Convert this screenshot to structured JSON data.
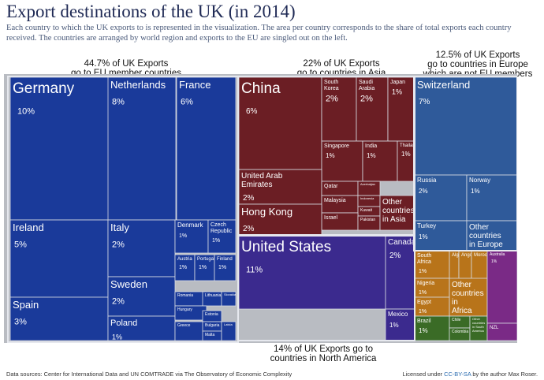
{
  "title": "Export destinations of the UK (in 2014)",
  "subtitle": "Each country to which the UK exports to is represented in the visualization. The area per country corresponds to the share of total exports each country received. The countries are arranged by world region and exports to the EU are singled out on the left.",
  "annotations": {
    "eu": [
      "44.7% of UK Exports",
      "go to EU member countries"
    ],
    "asia": [
      "22% of UK Exports",
      "go to countries in Asia"
    ],
    "europe": [
      "12.5% of UK Exports",
      "go to countries in Europe",
      "which are not EU members"
    ],
    "na": [
      "14% of UK Exports go to",
      "countries in North America"
    ]
  },
  "footer": {
    "left": "Data sources: Center for International Data and UN COMTRADE via The Observatory of Economic Complexity",
    "right_prefix": "Licensed under ",
    "right_license": "CC-BY-SA",
    "right_suffix": " by the author Max Roser."
  },
  "colors": {
    "eu": "#1a3a9a",
    "asia": "#6b1e24",
    "europe": "#2f5a9a",
    "north_america": "#3b2a8e",
    "africa": "#b8741a",
    "south_america": "#3a6b26",
    "oceania": "#7a2a86"
  },
  "chart_data": {
    "type": "treemap",
    "title": "Export destinations of the UK (in 2014)",
    "unit": "% of UK exports",
    "regions": [
      {
        "name": "EU member countries",
        "share": 44.7,
        "countries": [
          {
            "label": "Germany",
            "value": "10%"
          },
          {
            "label": "Netherlands",
            "value": "8%"
          },
          {
            "label": "France",
            "value": "6%"
          },
          {
            "label": "Ireland",
            "value": "5%"
          },
          {
            "label": "Spain",
            "value": "3%"
          },
          {
            "label": "Italy",
            "value": "2%"
          },
          {
            "label": "Sweden",
            "value": "2%"
          },
          {
            "label": "Poland",
            "value": "1%"
          },
          {
            "label": "Denmark",
            "value": "1%"
          },
          {
            "label": "Czech Republic",
            "value": "1%"
          },
          {
            "label": "Austria",
            "value": "1%"
          },
          {
            "label": "Portugal",
            "value": "1%"
          },
          {
            "label": "Finland",
            "value": "1%"
          },
          {
            "label": "Romania",
            "value": ""
          },
          {
            "label": "Lithuania",
            "value": ""
          },
          {
            "label": "Slovakia",
            "value": ""
          },
          {
            "label": "Hungary",
            "value": ""
          },
          {
            "label": "Estonia",
            "value": ""
          },
          {
            "label": "Greece",
            "value": ""
          },
          {
            "label": "Bulgaria",
            "value": ""
          },
          {
            "label": "Malta",
            "value": ""
          },
          {
            "label": "Latvia",
            "value": ""
          }
        ]
      },
      {
        "name": "Asia",
        "share": 22,
        "countries": [
          {
            "label": "China",
            "value": "6%"
          },
          {
            "label": "South Korea",
            "value": "2%"
          },
          {
            "label": "Saudi Arabia",
            "value": "2%"
          },
          {
            "label": "Japan",
            "value": "1%"
          },
          {
            "label": "Singapore",
            "value": "1%"
          },
          {
            "label": "India",
            "value": "1%"
          },
          {
            "label": "Thailand",
            "value": "1%"
          },
          {
            "label": "United Arab Emirates",
            "value": "2%"
          },
          {
            "label": "Qatar",
            "value": ""
          },
          {
            "label": "Azerbaijan",
            "value": ""
          },
          {
            "label": "Malaysia",
            "value": ""
          },
          {
            "label": "Indonesia",
            "value": ""
          },
          {
            "label": "Kuwait",
            "value": ""
          },
          {
            "label": "Israel",
            "value": ""
          },
          {
            "label": "Pakistan",
            "value": ""
          },
          {
            "label": "Hong Kong",
            "value": "2%"
          },
          {
            "label": "Other countries in Asia",
            "value": ""
          }
        ]
      },
      {
        "name": "Europe (non-EU)",
        "share": 12.5,
        "countries": [
          {
            "label": "Switzerland",
            "value": "7%"
          },
          {
            "label": "Russia",
            "value": "2%"
          },
          {
            "label": "Norway",
            "value": "1%"
          },
          {
            "label": "Turkey",
            "value": "1%"
          },
          {
            "label": "Other countries in Europe",
            "value": ""
          }
        ]
      },
      {
        "name": "North America",
        "share": 14,
        "countries": [
          {
            "label": "United States",
            "value": "11%"
          },
          {
            "label": "Canada",
            "value": "2%"
          },
          {
            "label": "Mexico",
            "value": "1%"
          }
        ]
      },
      {
        "name": "Africa",
        "share": null,
        "countries": [
          {
            "label": "South Africa",
            "value": "1%"
          },
          {
            "label": "Algeria",
            "value": ""
          },
          {
            "label": "Angola",
            "value": ""
          },
          {
            "label": "Morocco",
            "value": ""
          },
          {
            "label": "Nigeria",
            "value": "1%"
          },
          {
            "label": "Egypt",
            "value": "1%"
          },
          {
            "label": "Other countries in Africa",
            "value": ""
          }
        ]
      },
      {
        "name": "South America",
        "share": null,
        "countries": [
          {
            "label": "Brazil",
            "value": "1%"
          },
          {
            "label": "Chile",
            "value": ""
          },
          {
            "label": "Colombia",
            "value": ""
          },
          {
            "label": "Other countries in South America",
            "value": ""
          }
        ]
      },
      {
        "name": "Oceania",
        "share": null,
        "countries": [
          {
            "label": "Australia",
            "value": "1%"
          },
          {
            "label": "NZL",
            "value": ""
          }
        ]
      }
    ]
  }
}
